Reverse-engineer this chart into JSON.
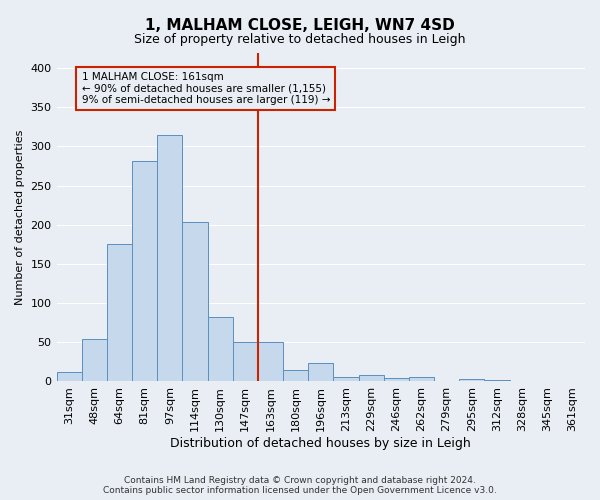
{
  "title": "1, MALHAM CLOSE, LEIGH, WN7 4SD",
  "subtitle": "Size of property relative to detached houses in Leigh",
  "xlabel": "Distribution of detached houses by size in Leigh",
  "ylabel": "Number of detached properties",
  "footer": "Contains HM Land Registry data © Crown copyright and database right 2024.\nContains public sector information licensed under the Open Government Licence v3.0.",
  "categories": [
    "31sqm",
    "48sqm",
    "64sqm",
    "81sqm",
    "97sqm",
    "114sqm",
    "130sqm",
    "147sqm",
    "163sqm",
    "180sqm",
    "196sqm",
    "213sqm",
    "229sqm",
    "246sqm",
    "262sqm",
    "279sqm",
    "295sqm",
    "312sqm",
    "328sqm",
    "345sqm",
    "361sqm"
  ],
  "values": [
    12,
    54,
    176,
    281,
    315,
    203,
    82,
    51,
    51,
    15,
    24,
    6,
    8,
    5,
    6,
    1,
    3,
    2,
    1,
    1,
    0
  ],
  "bar_color": "#c6d9ec",
  "bar_edge_color": "#5a8fc0",
  "pct_smaller": 90,
  "n_smaller": 1155,
  "pct_larger": 9,
  "n_larger": 119,
  "vline_bin_index": 8,
  "ylim": [
    0,
    420
  ],
  "yticks": [
    0,
    50,
    100,
    150,
    200,
    250,
    300,
    350,
    400
  ],
  "bg_color": "#e8eef4",
  "grid_color": "#ffffff",
  "annotation_box_color": "#cc2200",
  "title_fontsize": 11,
  "subtitle_fontsize": 9,
  "ylabel_fontsize": 8,
  "xlabel_fontsize": 9,
  "tick_fontsize": 8,
  "footer_fontsize": 6.5
}
